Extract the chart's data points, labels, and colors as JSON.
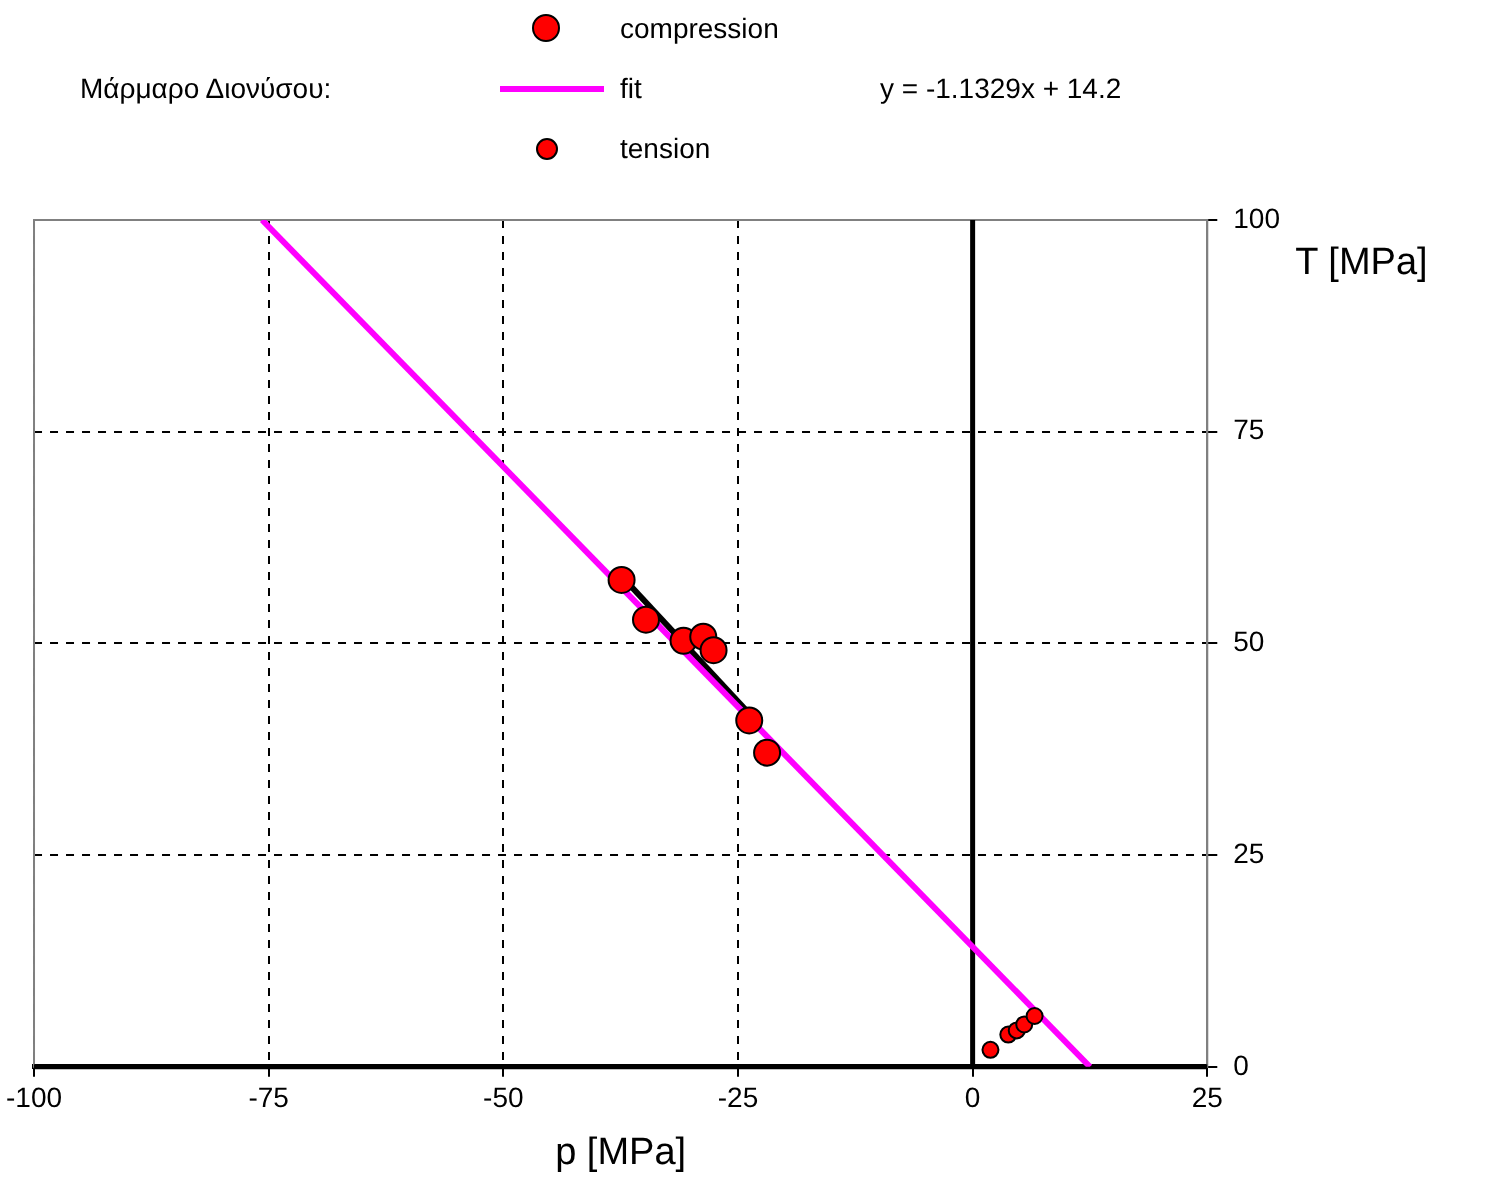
{
  "chart_data": {
    "type": "scatter",
    "xlabel": "p [MPa]",
    "ylabel": "T [MPa]",
    "legend_title": "Μάρμαρο Διονύσου:",
    "legend": "top",
    "annotations": [
      "y = -1.1329x + 14.2"
    ],
    "xlim": [
      -100,
      25
    ],
    "xticks": [
      -100,
      -75,
      -50,
      -25,
      0,
      25
    ],
    "ylim": [
      0,
      100
    ],
    "yticks": [
      0,
      25,
      50,
      75,
      100
    ],
    "grid": true,
    "marker": "circle",
    "ref_lines": [
      {
        "axis": "x",
        "value": 0,
        "color": "#000000"
      }
    ],
    "series": [
      {
        "name": "compression",
        "type": "scatter",
        "color": "#ff0000",
        "x": [
          -37.4,
          -34.8,
          -30.8,
          -28.7,
          -27.6,
          -23.8,
          -21.9
        ],
        "values": [
          57.5,
          52.8,
          50.3,
          50.8,
          49.2,
          40.9,
          37.1
        ]
      },
      {
        "name": "fit",
        "type": "line",
        "color": "#ff00ff",
        "marker": "none",
        "x": [
          -75.7,
          12.5
        ],
        "values": [
          100,
          0
        ]
      },
      {
        "name": "tension",
        "type": "scatter",
        "color": "#ff0000",
        "x": [
          1.9,
          3.8,
          4.7,
          5.5,
          6.6
        ],
        "values": [
          2,
          3.8,
          4.3,
          5,
          6
        ]
      },
      {
        "type": "line",
        "color": "#000000",
        "marker": "none",
        "x": [
          -36.7,
          -22.7
        ],
        "values": [
          57.1,
          40.4
        ]
      }
    ]
  }
}
